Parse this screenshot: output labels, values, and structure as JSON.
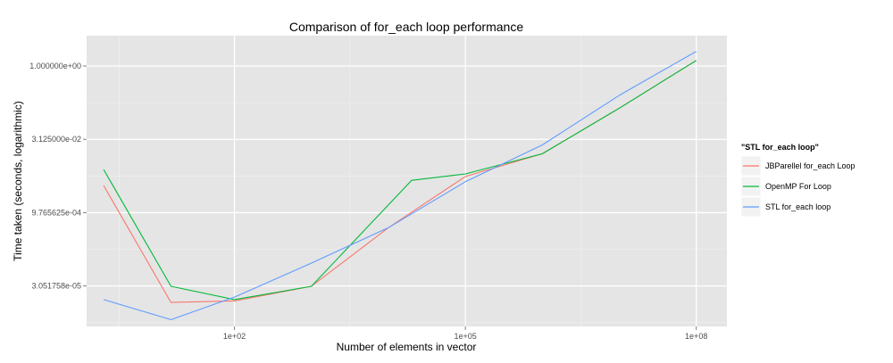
{
  "chart_data": {
    "type": "line",
    "title": "Comparison of for_each loop performance",
    "xlabel": "Number  of elements in vector",
    "ylabel": "Time taken (seconds, logarithmic)",
    "x_scale": "log10",
    "y_scale": "log2",
    "x_ticks": [
      {
        "value": 100,
        "label": "1e+02"
      },
      {
        "value": 100000,
        "label": "1e+05"
      },
      {
        "value": 100000000,
        "label": "1e+08"
      }
    ],
    "y_ticks": [
      {
        "value": 3.051758e-05,
        "label": "3.051758e-05"
      },
      {
        "value": 0.0009765625,
        "label": "9.765625e-04"
      },
      {
        "value": 0.03125,
        "label": "3.125000e-02"
      },
      {
        "value": 1.0,
        "label": "1.000000e+00"
      }
    ],
    "xlim": [
      1.2,
      250000000
    ],
    "ylim": [
      4.5e-06,
      4.2
    ],
    "legend": {
      "title": "\"STL for_each loop\"",
      "position": "right"
    },
    "series": [
      {
        "name": "JBParellel for_each Loop",
        "color": "#F8766D",
        "x": [
          2,
          15,
          100,
          1000,
          10000,
          100000,
          1000000,
          10000000,
          100000000
        ],
        "y": [
          0.0035,
          1.4e-05,
          1.5e-05,
          3e-05,
          0.00048,
          0.0054,
          0.0158,
          0.136,
          1.3
        ]
      },
      {
        "name": "OpenMP For Loop",
        "color": "#00BA38",
        "x": [
          2,
          15,
          100,
          1000,
          20000,
          100000,
          1000000,
          10000000,
          100000000
        ],
        "y": [
          0.0075,
          3e-05,
          1.6e-05,
          3e-05,
          0.0045,
          0.0061,
          0.0158,
          0.136,
          1.3
        ]
      },
      {
        "name": "STL for_each loop",
        "color": "#619CFF",
        "x": [
          2,
          15,
          100,
          1000,
          10000,
          100000,
          1000000,
          10000000,
          100000000
        ],
        "y": [
          1.6e-05,
          6.2e-06,
          1.8e-05,
          9e-05,
          0.00048,
          0.0042,
          0.024,
          0.25,
          2.0
        ]
      }
    ]
  }
}
